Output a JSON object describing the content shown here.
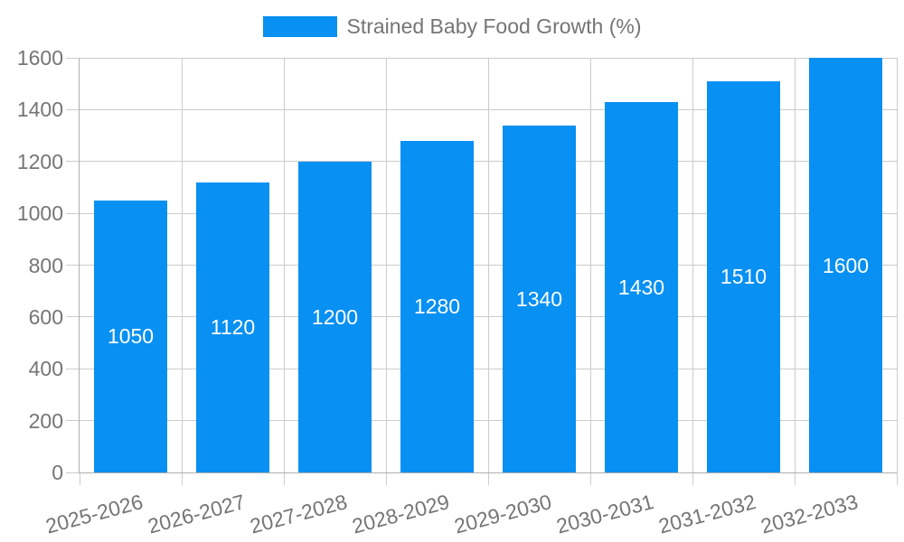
{
  "legend": {
    "series_label": "Strained Baby Food Growth (%)"
  },
  "colors": {
    "bar": "#0890f2",
    "bar_label": "#ffffff",
    "axis_text": "#757575",
    "grid": "#cccccc",
    "axis_line": "#b0b0b0",
    "background": "#ffffff"
  },
  "chart_data": {
    "type": "bar",
    "title": "Strained Baby Food Growth (%)",
    "categories": [
      "2025-2026",
      "2026-2027",
      "2027-2028",
      "2028-2029",
      "2029-2030",
      "2030-2031",
      "2031-2032",
      "2032-2033"
    ],
    "values": [
      1050,
      1120,
      1200,
      1280,
      1340,
      1430,
      1510,
      1600
    ],
    "xlabel": "",
    "ylabel": "",
    "ylim": [
      0,
      1600
    ],
    "yticks": [
      0,
      200,
      400,
      600,
      800,
      1000,
      1200,
      1400,
      1600
    ],
    "grid": true,
    "legend_position": "top",
    "bar_value_labels": "inside-center",
    "x_tick_label_rotation_deg": -15
  }
}
